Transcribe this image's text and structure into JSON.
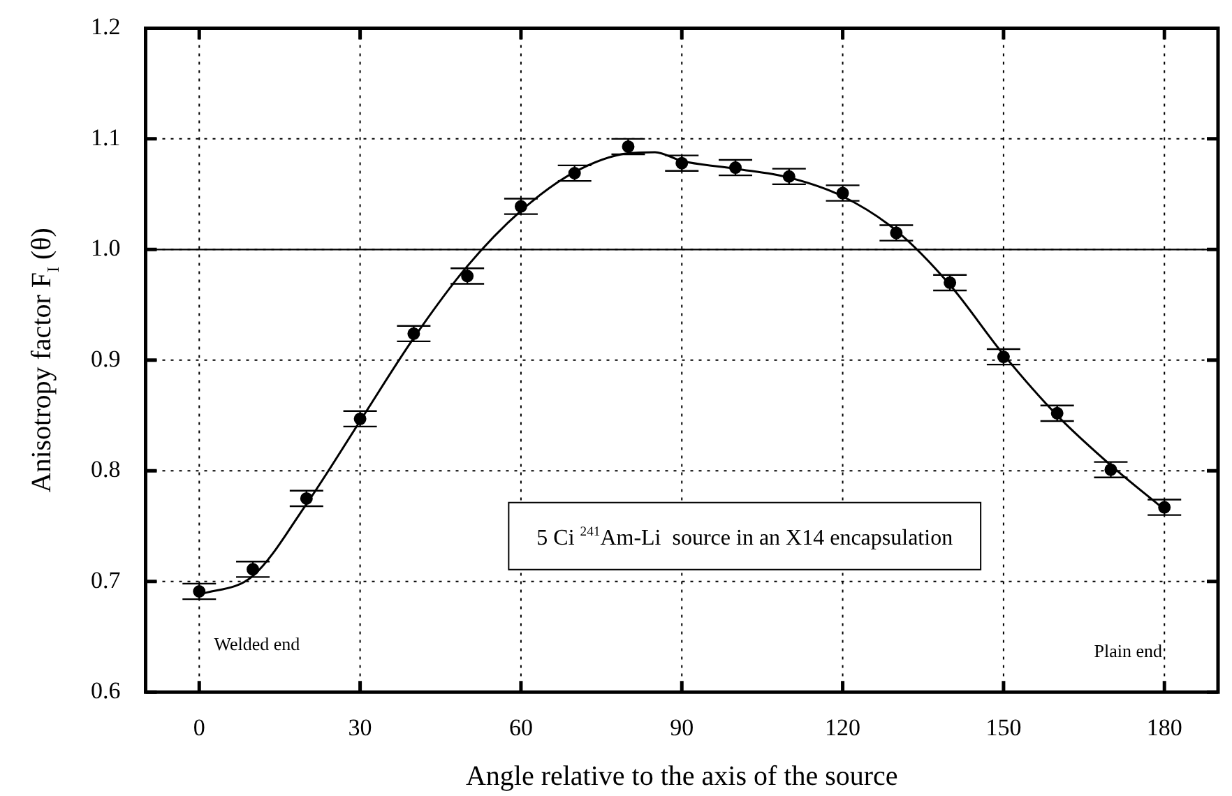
{
  "chart_data": {
    "type": "scatter",
    "xlabel": "Angle relative to the axis of the source",
    "ylabel": "Anisotropy factor F$_{I}$ (θ)",
    "x": [
      0,
      10,
      20,
      30,
      40,
      50,
      60,
      70,
      80,
      90,
      100,
      110,
      120,
      130,
      140,
      150,
      160,
      170,
      180
    ],
    "series": [
      {
        "color": "#000000",
        "marker": "circle",
        "values": [
          0.691,
          0.711,
          0.775,
          0.847,
          0.924,
          0.976,
          1.039,
          1.069,
          1.093,
          1.078,
          1.074,
          1.066,
          1.051,
          1.015,
          0.97,
          0.903,
          0.852,
          0.801,
          0.767
        ],
        "errors": [
          0.007,
          0.007,
          0.007,
          0.007,
          0.007,
          0.007,
          0.007,
          0.007,
          0.007,
          0.007,
          0.007,
          0.007,
          0.007,
          0.007,
          0.007,
          0.007,
          0.007,
          0.007,
          0.007
        ]
      },
      {
        "type": "line",
        "color": "#000000",
        "marker": "none",
        "line_style": "solid",
        "x": [
          0,
          10,
          20,
          30,
          40,
          50,
          60,
          70,
          80,
          85,
          90,
          100,
          110,
          120,
          130,
          140,
          150,
          160,
          170,
          180
        ],
        "values": [
          0.688,
          0.705,
          0.77,
          0.845,
          0.92,
          0.985,
          1.035,
          1.07,
          1.087,
          1.088,
          1.08,
          1.073,
          1.065,
          1.048,
          1.017,
          0.968,
          0.905,
          0.85,
          0.805,
          0.765
        ]
      }
    ],
    "xlim": [
      -10,
      190
    ],
    "xticks": [
      0,
      30,
      60,
      90,
      120,
      150,
      180
    ],
    "ylim": [
      0.6,
      1.2
    ],
    "yticks": [
      0.6,
      0.7,
      0.8,
      0.9,
      {
        "value": 1,
        "label": "1.0"
      },
      1.1,
      1.2
    ],
    "grid": true,
    "ref_lines": [
      {
        "axis": "y",
        "value": 1.0,
        "color": "#000000",
        "line_style": "solid"
      }
    ],
    "annotations": [
      "Welded end",
      "Plain end",
      "5 Ci $^{241}$Am-Li  source in an X14 encapsulation"
    ]
  }
}
